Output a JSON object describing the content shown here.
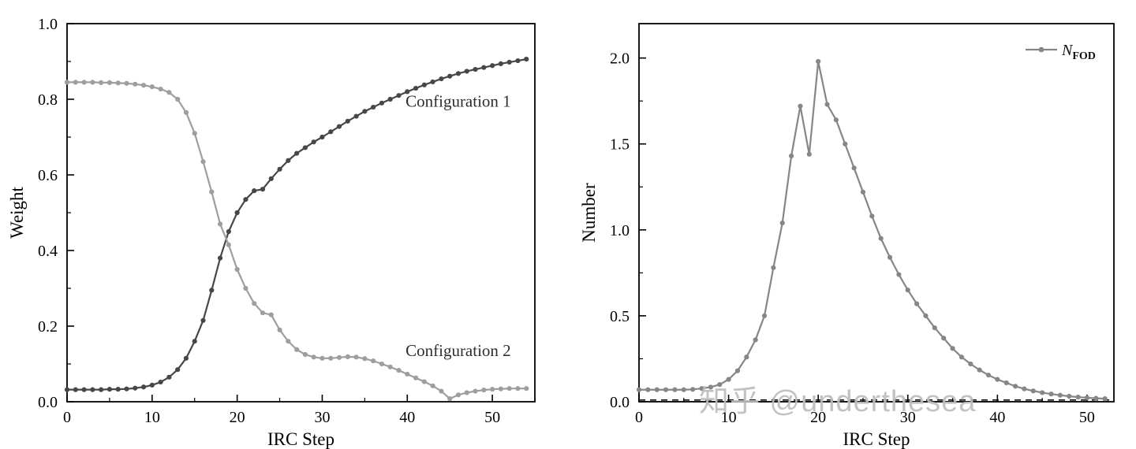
{
  "watermark": "知乎 @underthesea",
  "chart_data": [
    {
      "type": "line",
      "title": "",
      "xlabel": "IRC Step",
      "ylabel": "Weight",
      "xlim": [
        0,
        55
      ],
      "ylim": [
        0,
        1.0
      ],
      "xticks": [
        0,
        10,
        20,
        30,
        40,
        50
      ],
      "yticks": [
        0.0,
        0.2,
        0.4,
        0.6,
        0.8,
        1.0
      ],
      "ytick_labels": [
        "0.0",
        "0.2",
        "0.4",
        "0.6",
        "0.8",
        "1.0"
      ],
      "x_minor_step": 5,
      "y_minor_step": 0.1,
      "grid": false,
      "legend": null,
      "series": [
        {
          "name": "Configuration 1",
          "color": "#474747",
          "values": [
            0.032,
            0.032,
            0.032,
            0.032,
            0.032,
            0.033,
            0.033,
            0.034,
            0.036,
            0.039,
            0.044,
            0.052,
            0.065,
            0.085,
            0.115,
            0.16,
            0.215,
            0.295,
            0.38,
            0.45,
            0.5,
            0.535,
            0.558,
            0.562,
            0.59,
            0.615,
            0.638,
            0.657,
            0.672,
            0.687,
            0.7,
            0.714,
            0.728,
            0.742,
            0.755,
            0.768,
            0.779,
            0.79,
            0.8,
            0.81,
            0.82,
            0.829,
            0.838,
            0.846,
            0.854,
            0.861,
            0.868,
            0.874,
            0.879,
            0.884,
            0.889,
            0.894,
            0.898,
            0.902,
            0.906
          ]
        },
        {
          "name": "Configuration 2",
          "color": "#9e9e9e",
          "values": [
            0.845,
            0.845,
            0.845,
            0.845,
            0.844,
            0.844,
            0.843,
            0.842,
            0.84,
            0.837,
            0.833,
            0.827,
            0.818,
            0.8,
            0.765,
            0.71,
            0.635,
            0.555,
            0.47,
            0.415,
            0.35,
            0.3,
            0.26,
            0.235,
            0.23,
            0.19,
            0.16,
            0.138,
            0.125,
            0.118,
            0.115,
            0.115,
            0.117,
            0.119,
            0.118,
            0.114,
            0.108,
            0.1,
            0.092,
            0.083,
            0.073,
            0.063,
            0.053,
            0.042,
            0.028,
            0.008,
            0.018,
            0.024,
            0.028,
            0.031,
            0.033,
            0.034,
            0.035,
            0.035,
            0.035
          ]
        }
      ],
      "annotations": [
        {
          "text": "Configuration 1",
          "x": 39.8,
          "y": 0.795
        },
        {
          "text": "Configuration 2",
          "x": 39.8,
          "y": 0.135
        }
      ]
    },
    {
      "type": "line",
      "title": "",
      "xlabel": "IRC Step",
      "ylabel": "Number",
      "xlim": [
        0,
        53
      ],
      "ylim": [
        0,
        2.2
      ],
      "xticks": [
        0,
        10,
        20,
        30,
        40,
        50
      ],
      "yticks": [
        0.0,
        0.5,
        1.0,
        1.5,
        2.0
      ],
      "ytick_labels": [
        "0.0",
        "0.5",
        "1.0",
        "1.5",
        "2.0"
      ],
      "x_minor_step": 5,
      "y_minor_step": 0.25,
      "grid": false,
      "ref_line_y": 0.01,
      "legend": {
        "position": "top-right",
        "label_main": "N",
        "label_sub": "FOD"
      },
      "series": [
        {
          "name": "N_FOD",
          "color": "#868686",
          "values": [
            0.07,
            0.07,
            0.07,
            0.07,
            0.07,
            0.07,
            0.072,
            0.077,
            0.085,
            0.1,
            0.13,
            0.18,
            0.26,
            0.36,
            0.5,
            0.78,
            1.04,
            1.43,
            1.72,
            1.44,
            1.98,
            1.73,
            1.64,
            1.5,
            1.36,
            1.22,
            1.08,
            0.95,
            0.84,
            0.74,
            0.65,
            0.57,
            0.5,
            0.43,
            0.37,
            0.31,
            0.26,
            0.22,
            0.185,
            0.155,
            0.13,
            0.11,
            0.09,
            0.075,
            0.063,
            0.053,
            0.045,
            0.038,
            0.032,
            0.027,
            0.023,
            0.02,
            0.018
          ]
        }
      ],
      "annotations": []
    }
  ]
}
